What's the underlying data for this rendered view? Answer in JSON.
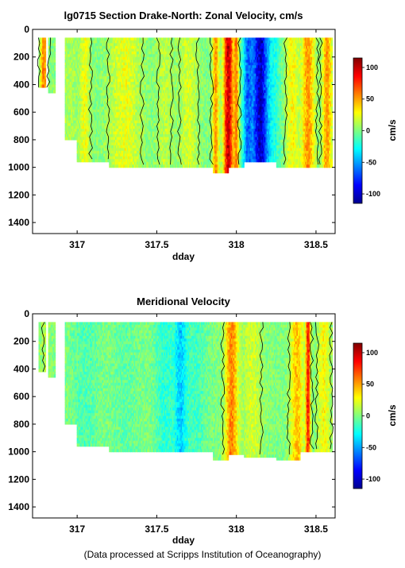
{
  "chart_data": [
    {
      "type": "heatmap",
      "title": "lg0715 Section Drake-North: Zonal Velocity, cm/s",
      "xlabel": "dday",
      "ylabel": "",
      "xlim": [
        316.72,
        318.62
      ],
      "ylim": [
        1480,
        0
      ],
      "x_ticks": [
        "317",
        "317.5",
        "318",
        "318.5"
      ],
      "y_ticks": [
        "0",
        "200",
        "400",
        "600",
        "800",
        "1000",
        "1200",
        "1400"
      ],
      "colorbar": {
        "label": "cm/s",
        "ticks": [
          "100",
          "50",
          "0",
          "-50",
          "-100"
        ],
        "range": [
          -115,
          115
        ]
      },
      "data_coverage": {
        "columns": [
          {
            "x": [
              316.76,
              316.8
            ],
            "depth_max": 420
          },
          {
            "x": [
              316.82,
              316.86
            ],
            "depth_max": 450
          },
          {
            "x": [
              316.92,
              317.0
            ],
            "depth_max": 800
          },
          {
            "x": [
              317.0,
              317.2
            ],
            "depth_max": 950
          },
          {
            "x": [
              317.2,
              317.45
            ],
            "depth_max": 985
          },
          {
            "x": [
              317.45,
              317.85
            ],
            "depth_max": 990
          },
          {
            "x": [
              317.85,
              317.95
            ],
            "depth_max": 1040
          },
          {
            "x": [
              317.95,
              318.05
            ],
            "depth_max": 1000
          },
          {
            "x": [
              318.05,
              318.25
            ],
            "depth_max": 960
          },
          {
            "x": [
              318.25,
              318.4
            ],
            "depth_max": 1000
          },
          {
            "x": [
              318.4,
              318.6
            ],
            "depth_max": 1000
          }
        ]
      },
      "velocity_features": [
        {
          "x": 316.79,
          "width": 0.02,
          "value": 60
        },
        {
          "x": 316.95,
          "width": 0.08,
          "value": 10
        },
        {
          "x": 317.05,
          "width": 0.03,
          "value": 25
        },
        {
          "x": 317.3,
          "width": 0.1,
          "value": 25
        },
        {
          "x": 317.55,
          "width": 0.05,
          "value": 15
        },
        {
          "x": 317.7,
          "width": 0.06,
          "value": 20
        },
        {
          "x": 317.87,
          "width": 0.02,
          "value": 55
        },
        {
          "x": 317.95,
          "width": 0.03,
          "value": 105
        },
        {
          "x": 318.0,
          "width": 0.015,
          "value": 55
        },
        {
          "x": 318.07,
          "width": 0.03,
          "value": -60
        },
        {
          "x": 318.15,
          "width": 0.05,
          "value": -105
        },
        {
          "x": 318.24,
          "width": 0.04,
          "value": -20
        },
        {
          "x": 318.35,
          "width": 0.04,
          "value": 30
        },
        {
          "x": 318.45,
          "width": 0.04,
          "value": 55
        },
        {
          "x": 318.57,
          "width": 0.03,
          "value": 55
        }
      ],
      "contour_levels": [
        0
      ]
    },
    {
      "type": "heatmap",
      "title": "Meridional Velocity",
      "xlabel": "dday",
      "ylabel": "",
      "xlim": [
        316.72,
        318.62
      ],
      "ylim": [
        1480,
        0
      ],
      "x_ticks": [
        "317",
        "317.5",
        "318",
        "318.5"
      ],
      "y_ticks": [
        "0",
        "200",
        "400",
        "600",
        "800",
        "1000",
        "1200",
        "1400"
      ],
      "colorbar": {
        "label": "cm/s",
        "ticks": [
          "100",
          "50",
          "0",
          "-50",
          "-100"
        ],
        "range": [
          -115,
          115
        ]
      },
      "data_coverage": {
        "columns": [
          {
            "x": [
              316.76,
              316.8
            ],
            "depth_max": 420
          },
          {
            "x": [
              316.82,
              316.86
            ],
            "depth_max": 450
          },
          {
            "x": [
              316.92,
              317.0
            ],
            "depth_max": 800
          },
          {
            "x": [
              317.0,
              317.2
            ],
            "depth_max": 950
          },
          {
            "x": [
              317.2,
              317.45
            ],
            "depth_max": 985
          },
          {
            "x": [
              317.45,
              317.85
            ],
            "depth_max": 990
          },
          {
            "x": [
              317.85,
              317.95
            ],
            "depth_max": 1050
          },
          {
            "x": [
              317.95,
              318.05
            ],
            "depth_max": 1010
          },
          {
            "x": [
              318.05,
              318.25
            ],
            "depth_max": 1040
          },
          {
            "x": [
              318.25,
              318.4
            ],
            "depth_max": 1050
          },
          {
            "x": [
              318.4,
              318.6
            ],
            "depth_max": 1000
          }
        ]
      },
      "velocity_features": [
        {
          "x": 316.8,
          "width": 0.03,
          "value": 10
        },
        {
          "x": 317.05,
          "width": 0.08,
          "value": -12
        },
        {
          "x": 317.3,
          "width": 0.08,
          "value": -8
        },
        {
          "x": 317.55,
          "width": 0.06,
          "value": -20
        },
        {
          "x": 317.65,
          "width": 0.04,
          "value": -40
        },
        {
          "x": 317.75,
          "width": 0.06,
          "value": -15
        },
        {
          "x": 317.97,
          "width": 0.04,
          "value": 60
        },
        {
          "x": 318.1,
          "width": 0.06,
          "value": 20
        },
        {
          "x": 318.25,
          "width": 0.05,
          "value": 0
        },
        {
          "x": 318.38,
          "width": 0.04,
          "value": 45
        },
        {
          "x": 318.45,
          "width": 0.015,
          "value": 85
        },
        {
          "x": 318.55,
          "width": 0.04,
          "value": 30
        }
      ],
      "contour_levels": [
        0
      ]
    }
  ],
  "footer": "(Data processed at Scripps Institution of Oceanography)"
}
